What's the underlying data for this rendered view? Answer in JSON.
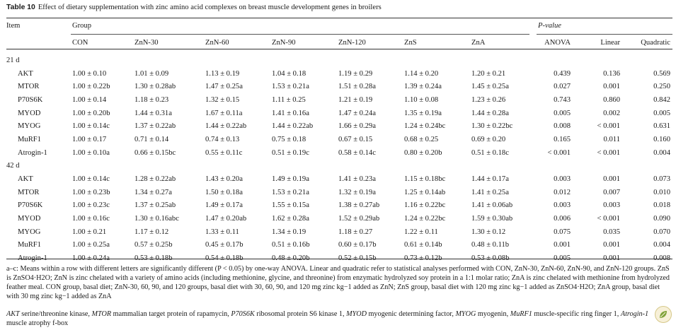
{
  "caption": {
    "label": "Table 10",
    "text": "Effect of dietary supplementation with zinc amino acid complexes on breast muscle development genes in broilers"
  },
  "headers": {
    "item": "Item",
    "group": "Group",
    "pvalue": "P-value",
    "groups": [
      "CON",
      "ZnN-30",
      "ZnN-60",
      "ZnN-90",
      "ZnN-120",
      "ZnS",
      "ZnA"
    ],
    "tests": [
      "ANOVA",
      "Linear",
      "Quadratic"
    ]
  },
  "sections": [
    {
      "label": "21 d",
      "rows": [
        {
          "gene": "AKT",
          "values": [
            "1.00 ± 0.10",
            "1.01 ± 0.09",
            "1.13 ± 0.19",
            "1.04 ± 0.18",
            "1.19 ± 0.29",
            "1.14 ± 0.20",
            "1.20 ± 0.21"
          ],
          "p": [
            "0.439",
            "0.136",
            "0.569"
          ]
        },
        {
          "gene": "MTOR",
          "values": [
            "1.00 ± 0.22b",
            "1.30 ± 0.28ab",
            "1.47 ± 0.25a",
            "1.53 ± 0.21a",
            "1.51 ± 0.28a",
            "1.39 ± 0.24a",
            "1.45 ± 0.25a"
          ],
          "p": [
            "0.027",
            "0.001",
            "0.250"
          ]
        },
        {
          "gene": "P70S6K",
          "values": [
            "1.00 ± 0.14",
            "1.18 ± 0.23",
            "1.32 ± 0.15",
            "1.11 ± 0.25",
            "1.21 ± 0.19",
            "1.10 ± 0.08",
            "1.23 ± 0.26"
          ],
          "p": [
            "0.743",
            "0.860",
            "0.842"
          ]
        },
        {
          "gene": "MYOD",
          "values": [
            "1.00 ± 0.20b",
            "1.44 ± 0.31a",
            "1.67 ± 0.11a",
            "1.41 ± 0.16a",
            "1.47 ± 0.24a",
            "1.35 ± 0.19a",
            "1.44 ± 0.28a"
          ],
          "p": [
            "0.005",
            "0.002",
            "0.005"
          ]
        },
        {
          "gene": "MYOG",
          "values": [
            "1.00 ± 0.14c",
            "1.37 ± 0.22ab",
            "1.44 ± 0.22ab",
            "1.44 ± 0.22ab",
            "1.66 ± 0.29a",
            "1.24 ± 0.24bc",
            "1.30 ± 0.22bc"
          ],
          "p": [
            "0.008",
            "< 0.001",
            "0.631"
          ]
        },
        {
          "gene": "MuRF1",
          "values": [
            "1.00 ± 0.17",
            "0.71 ± 0.14",
            "0.74 ± 0.13",
            "0.75 ± 0.18",
            "0.67 ± 0.15",
            "0.68 ± 0.25",
            "0.69 ± 0.20"
          ],
          "p": [
            "0.165",
            "0.011",
            "0.160"
          ]
        },
        {
          "gene": "Atrogin-1",
          "values": [
            "1.00 ± 0.10a",
            "0.66 ± 0.15bc",
            "0.55 ± 0.11c",
            "0.51 ± 0.19c",
            "0.58 ± 0.14c",
            "0.80 ± 0.20b",
            "0.51 ± 0.18c"
          ],
          "p": [
            "< 0.001",
            "< 0.001",
            "0.004"
          ]
        }
      ]
    },
    {
      "label": "42 d",
      "rows": [
        {
          "gene": "AKT",
          "values": [
            "1.00 ± 0.14c",
            "1.28 ± 0.22ab",
            "1.43 ± 0.20a",
            "1.49 ± 0.19a",
            "1.41 ± 0.23a",
            "1.15 ± 0.18bc",
            "1.44 ± 0.17a"
          ],
          "p": [
            "0.003",
            "0.001",
            "0.073"
          ]
        },
        {
          "gene": "MTOR",
          "values": [
            "1.00 ± 0.23b",
            "1.34 ± 0.27a",
            "1.50 ± 0.18a",
            "1.53 ± 0.21a",
            "1.32 ± 0.19a",
            "1.25 ± 0.14ab",
            "1.41 ± 0.25a"
          ],
          "p": [
            "0.012",
            "0.007",
            "0.010"
          ]
        },
        {
          "gene": "P70S6K",
          "values": [
            "1.00 ± 0.23c",
            "1.37 ± 0.25ab",
            "1.49 ± 0.17a",
            "1.55 ± 0.15a",
            "1.38 ± 0.27ab",
            "1.16 ± 0.22bc",
            "1.41 ± 0.06ab"
          ],
          "p": [
            "0.003",
            "0.003",
            "0.018"
          ]
        },
        {
          "gene": "MYOD",
          "values": [
            "1.00 ± 0.16c",
            "1.30 ± 0.16abc",
            "1.47 ± 0.20ab",
            "1.62 ± 0.28a",
            "1.52 ± 0.29ab",
            "1.24 ± 0.22bc",
            "1.59 ± 0.30ab"
          ],
          "p": [
            "0.006",
            "< 0.001",
            "0.090"
          ]
        },
        {
          "gene": "MYOG",
          "values": [
            "1.00 ± 0.21",
            "1.17 ± 0.12",
            "1.33 ± 0.11",
            "1.34 ± 0.19",
            "1.18 ± 0.27",
            "1.22 ± 0.11",
            "1.30 ± 0.12"
          ],
          "p": [
            "0.075",
            "0.035",
            "0.070"
          ]
        },
        {
          "gene": "MuRF1",
          "values": [
            "1.00 ± 0.25a",
            "0.57 ± 0.25b",
            "0.45 ± 0.17b",
            "0.51 ± 0.16b",
            "0.60 ± 0.17b",
            "0.61 ± 0.14b",
            "0.48 ± 0.11b"
          ],
          "p": [
            "0.001",
            "0.001",
            "0.004"
          ]
        },
        {
          "gene": "Atrogin-1",
          "values": [
            "1.00 ± 0.24a",
            "0.53 ± 0.18b",
            "0.54 ± 0.18b",
            "0.48 ± 0.20b",
            "0.52 ± 0.15b",
            "0.73 ± 0.12b",
            "0.53 ± 0.08b"
          ],
          "p": [
            "0.005",
            "0.001",
            "0.008"
          ]
        }
      ]
    }
  ],
  "footnotes": {
    "stats": "a–c: Means within a row with different letters are significantly different (P < 0.05) by one-way ANOVA. Linear and quadratic refer to statistical analyses performed with CON, ZnN-30, ZnN-60, ZnN-90, and ZnN-120 groups. ZnS is ZnSO4·H2O; ZnN is zinc chelated with a variety of amino acids (including methionine, glycine, and threonine) from enzymatic hydrolyzed soy protein in a 1:1 molar ratio; ZnA is zinc chelated with methionine from hydrolyzed feather meal. CON group, basal diet; ZnN-30, 60, 90, and 120 groups, basal diet with 30, 60, 90, and 120 mg zinc kg−1 added as ZnN; ZnS group, basal diet with 120 mg zinc kg−1 added as ZnSO4·H2O; ZnA group, basal diet with 30 mg zinc kg−1 added as ZnA",
    "abbreviations": [
      {
        "abbr": "AKT",
        "full": "serine/threonine kinase,"
      },
      {
        "abbr": "MTOR",
        "full": "mammalian target protein of rapamycin,"
      },
      {
        "abbr": "P70S6K",
        "full": "ribosomal protein S6 kinase 1,"
      },
      {
        "abbr": "MYOD",
        "full": "myogenic determining factor,"
      },
      {
        "abbr": "MYOG",
        "full": "myogenin,"
      },
      {
        "abbr": "MuRF1",
        "full": "muscle-specific ring finger 1,"
      },
      {
        "abbr": "Atrogin-1",
        "full": "muscle atrophy f-box"
      }
    ]
  },
  "badge_icon": "leaf-badge-icon"
}
